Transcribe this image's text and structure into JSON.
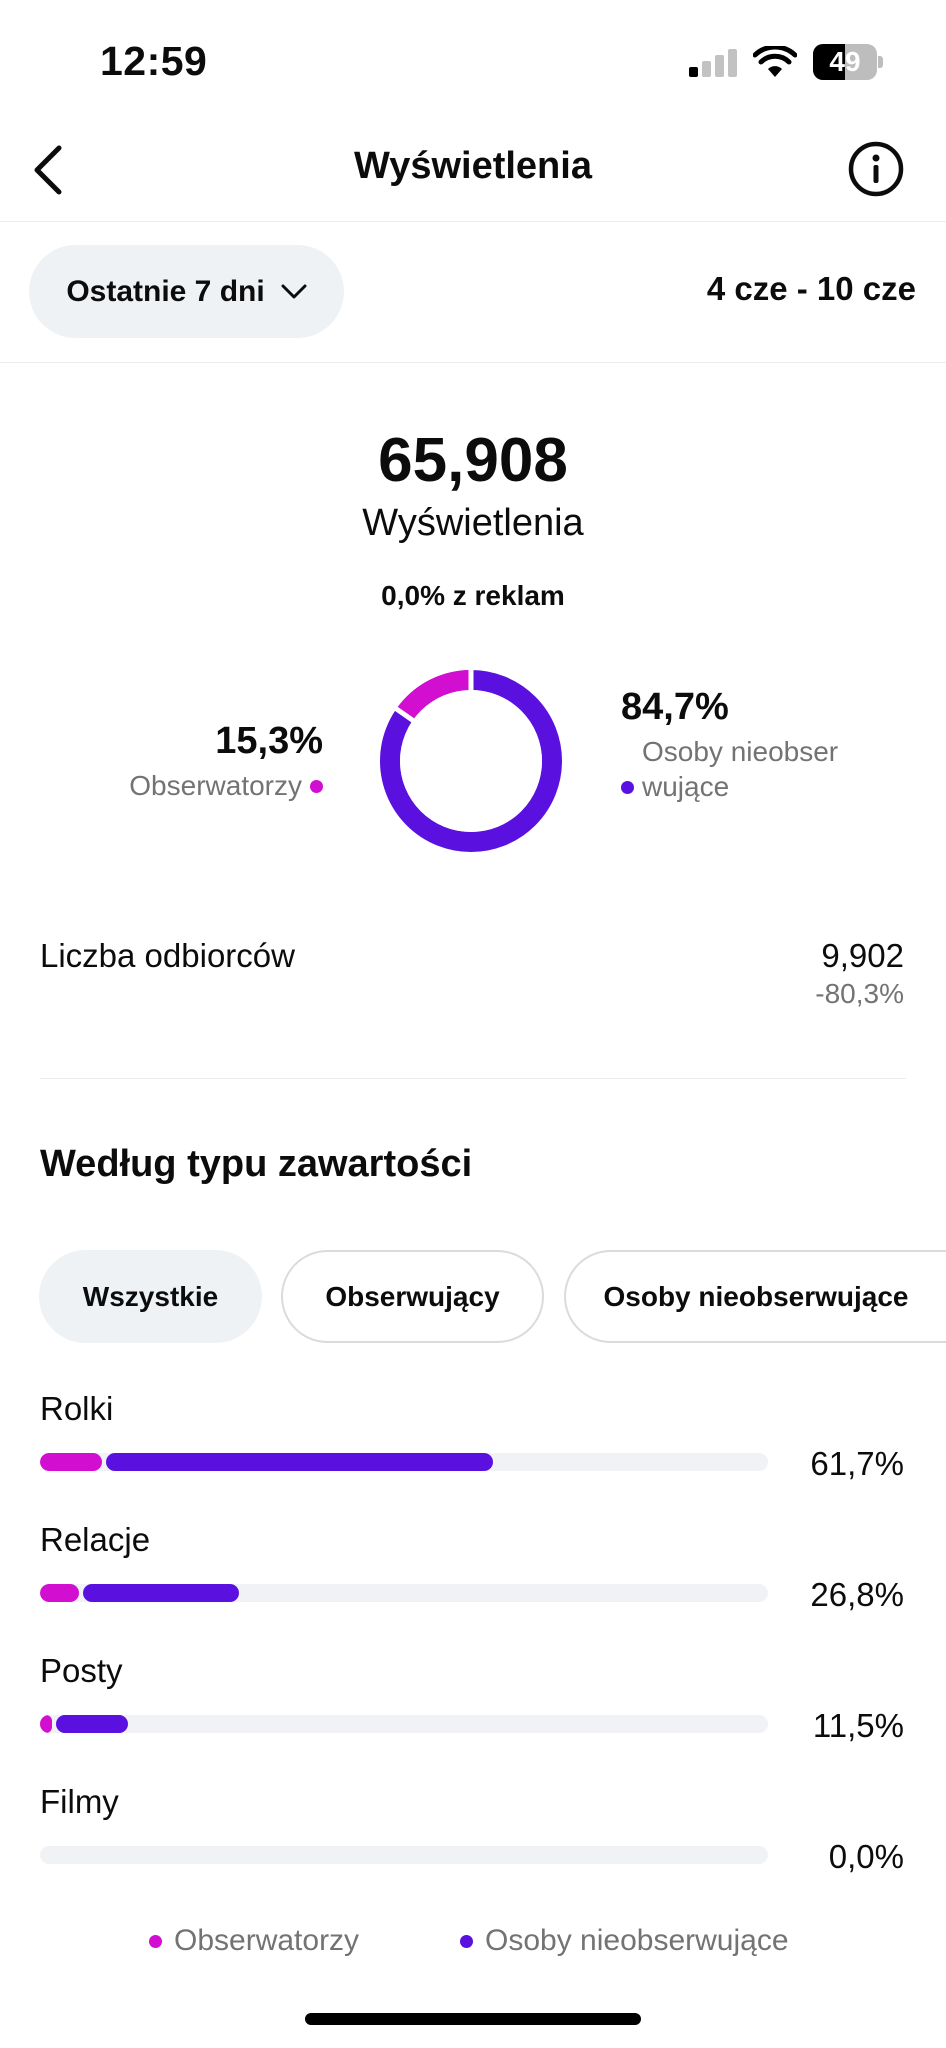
{
  "status_bar": {
    "time": "12:59",
    "battery": "49"
  },
  "header": {
    "title": "Wyświetlenia"
  },
  "range": {
    "label": "Ostatnie 7 dni",
    "dates": "4 cze - 10 cze"
  },
  "summary": {
    "total": "65,908",
    "label": "Wyświetlenia",
    "ads": "0,0% z reklam"
  },
  "donut": {
    "followers": {
      "pct": "15,3%",
      "label": "Obserwatorzy",
      "value": 15.3,
      "color": "#d20fd0"
    },
    "non_followers": {
      "pct": "84,7%",
      "label": "Osoby nieobserwujące",
      "value": 84.7,
      "color": "#5a11e0"
    }
  },
  "audience": {
    "label": "Liczba odbiorców",
    "value": "9,902",
    "change": "-80,3%"
  },
  "content_type": {
    "title": "Według typu zawartości",
    "filters": [
      "Wszystkie",
      "Obserwujący",
      "Osoby nieobserwujące"
    ],
    "rows": [
      {
        "label": "Rolki",
        "pct": "61,7%",
        "followers": 8.5,
        "non_followers": 53.2
      },
      {
        "label": "Relacje",
        "pct": "26,8%",
        "followers": 5.3,
        "non_followers": 21.5
      },
      {
        "label": "Posty",
        "pct": "11,5%",
        "followers": 1.6,
        "non_followers": 9.9
      },
      {
        "label": "Filmy",
        "pct": "0,0%",
        "followers": 0,
        "non_followers": 0
      }
    ]
  },
  "legend": {
    "followers": "Obserwatorzy",
    "non_followers": "Osoby nieobserwujące"
  }
}
